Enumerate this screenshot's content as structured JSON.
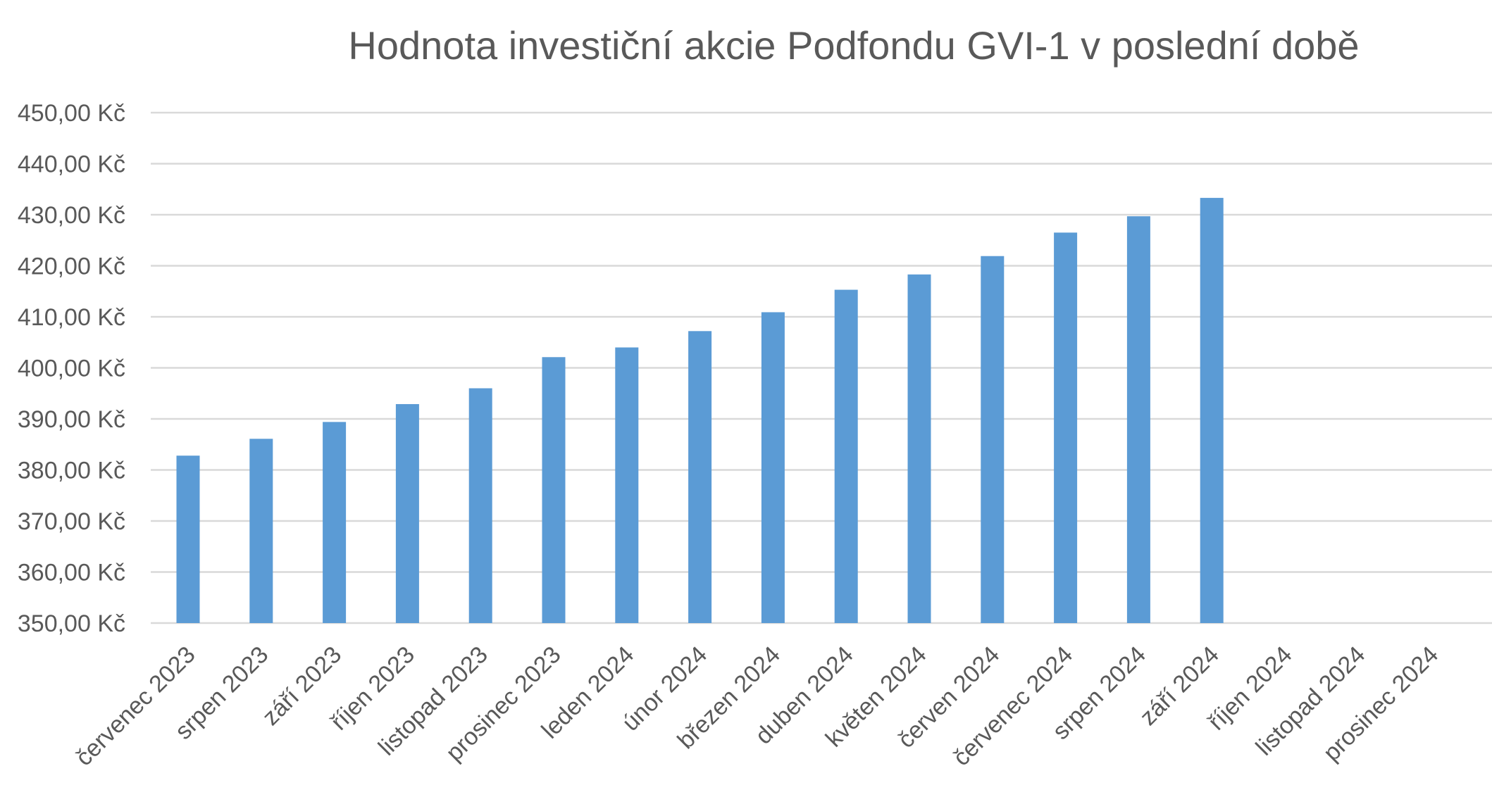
{
  "chart_data": {
    "type": "bar",
    "title": "Hodnota investiční akcie Podfondu GVI-1 v poslední době",
    "xlabel": "",
    "ylabel": "",
    "ylim": [
      350,
      450
    ],
    "yticks": [
      350,
      360,
      370,
      380,
      390,
      400,
      410,
      420,
      430,
      440,
      450
    ],
    "ytick_labels": [
      "350,00 Kč",
      "360,00 Kč",
      "370,00 Kč",
      "380,00 Kč",
      "390,00 Kč",
      "400,00 Kč",
      "410,00 Kč",
      "420,00 Kč",
      "430,00 Kč",
      "440,00 Kč",
      "450,00 Kč"
    ],
    "categories": [
      "červenec 2023",
      "srpen 2023",
      "září 2023",
      "říjen 2023",
      "listopad 2023",
      "prosinec 2023",
      "leden 2024",
      "únor 2024",
      "březen 2024",
      "duben 2024",
      "květen 2024",
      "červen 2024",
      "červenec 2024",
      "srpen 2024",
      "září 2024",
      "říjen 2024",
      "listopad 2024",
      "prosinec 2024"
    ],
    "values": [
      382.8,
      386.1,
      389.4,
      392.9,
      396.0,
      402.1,
      404.0,
      407.2,
      410.9,
      415.3,
      418.3,
      421.9,
      426.5,
      429.7,
      433.3,
      null,
      null,
      null
    ],
    "grid": true,
    "legend": "none",
    "bar_color": "#5b9bd5"
  }
}
